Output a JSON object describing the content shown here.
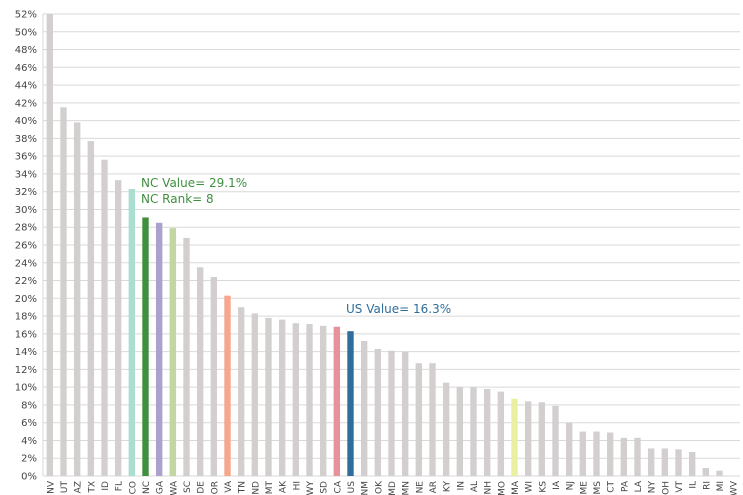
{
  "chart_data": {
    "type": "bar",
    "categories": [
      "NV",
      "UT",
      "AZ",
      "TX",
      "ID",
      "FL",
      "CO",
      "NC",
      "GA",
      "WA",
      "SC",
      "DE",
      "OR",
      "VA",
      "TN",
      "ND",
      "MT",
      "AK",
      "HI",
      "WY",
      "SD",
      "CA",
      "US",
      "NM",
      "OK",
      "MD",
      "MN",
      "NE",
      "AR",
      "KY",
      "IN",
      "AL",
      "NH",
      "MO",
      "MA",
      "WI",
      "KS",
      "IA",
      "NJ",
      "ME",
      "MS",
      "CT",
      "PA",
      "LA",
      "NY",
      "OH",
      "VT",
      "IL",
      "RI",
      "MI",
      "WV"
    ],
    "values": [
      52,
      41.5,
      39.8,
      37.7,
      35.6,
      33.3,
      32.3,
      29.1,
      28.5,
      27.9,
      26.8,
      23.5,
      22.4,
      20.3,
      19.0,
      18.3,
      17.8,
      17.6,
      17.2,
      17.1,
      16.9,
      16.8,
      16.3,
      15.2,
      14.3,
      14.1,
      14.0,
      12.7,
      12.7,
      10.5,
      10.0,
      10.0,
      9.8,
      9.5,
      8.7,
      8.4,
      8.3,
      7.9,
      6.0,
      5.0,
      5.0,
      4.9,
      4.3,
      4.3,
      3.1,
      3.1,
      3.0,
      2.7,
      0.9,
      0.6,
      0
    ],
    "colors": [
      "#d3cfcf",
      "#d3cfcf",
      "#d3cfcf",
      "#d3cfcf",
      "#d3cfcf",
      "#d3cfcf",
      "#a9ded1",
      "#3f8f3f",
      "#aaa2cd",
      "#c3d6a2",
      "#d3cfcf",
      "#d3cfcf",
      "#d3cfcf",
      "#f6a68b",
      "#d3cfcf",
      "#d3cfcf",
      "#d3cfcf",
      "#d3cfcf",
      "#d3cfcf",
      "#d3cfcf",
      "#d3cfcf",
      "#e8919b",
      "#2f6e9a",
      "#d3cfcf",
      "#d3cfcf",
      "#d3cfcf",
      "#d3cfcf",
      "#d3cfcf",
      "#d3cfcf",
      "#d3cfcf",
      "#d3cfcf",
      "#d3cfcf",
      "#d3cfcf",
      "#d3cfcf",
      "#e9f1a1",
      "#d3cfcf",
      "#d3cfcf",
      "#d3cfcf",
      "#d3cfcf",
      "#d3cfcf",
      "#d3cfcf",
      "#d3cfcf",
      "#d3cfcf",
      "#d3cfcf",
      "#d3cfcf",
      "#d3cfcf",
      "#d3cfcf",
      "#d3cfcf",
      "#d3cfcf",
      "#d3cfcf",
      "#d3cfcf"
    ],
    "ylim": [
      0,
      52
    ],
    "yticks": [
      {
        "value": 0,
        "label": "0%"
      },
      {
        "value": 2,
        "label": "2%"
      },
      {
        "value": 4,
        "label": "4%"
      },
      {
        "value": 6,
        "label": "6%"
      },
      {
        "value": 8,
        "label": "8%"
      },
      {
        "value": 10,
        "label": "10%"
      },
      {
        "value": 12,
        "label": "12%"
      },
      {
        "value": 14,
        "label": "14%"
      },
      {
        "value": 16,
        "label": "16%"
      },
      {
        "value": 18,
        "label": "18%"
      },
      {
        "value": 20,
        "label": "20%"
      },
      {
        "value": 22,
        "label": "22%"
      },
      {
        "value": 24,
        "label": "24%"
      },
      {
        "value": 26,
        "label": "26%"
      },
      {
        "value": 28,
        "label": "28%"
      },
      {
        "value": 30,
        "label": "30%"
      },
      {
        "value": 32,
        "label": "32%"
      },
      {
        "value": 34,
        "label": "34%"
      },
      {
        "value": 36,
        "label": "36%"
      },
      {
        "value": 38,
        "label": "38%"
      },
      {
        "value": 40,
        "label": "40%"
      },
      {
        "value": 42,
        "label": "42%"
      },
      {
        "value": 44,
        "label": "44%"
      },
      {
        "value": 46,
        "label": "46%"
      },
      {
        "value": 48,
        "label": "48%"
      },
      {
        "value": 50,
        "label": "50%"
      },
      {
        "value": 52,
        "label": "52%"
      }
    ],
    "grid": true,
    "annotations": [
      "NC Value= 29.1%",
      "NC Rank= 8",
      "US Value= 16.3%"
    ]
  }
}
